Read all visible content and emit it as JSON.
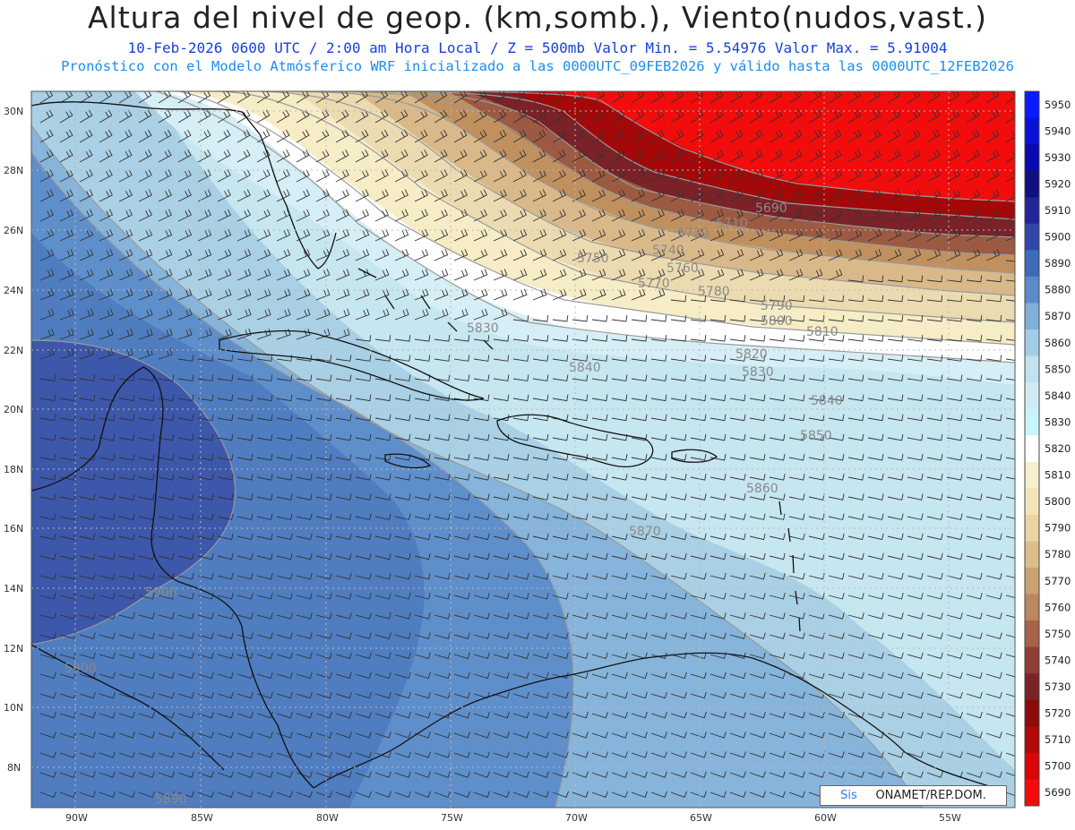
{
  "header": {
    "title": "Altura del nivel de geop. (km,somb.), Viento(nudos,vast.)",
    "line1": "10-Feb-2026  0600 UTC / 2:00 am Hora Local / Z = 500mb     Valor Min. = 5.54976  Valor Max. = 5.91004",
    "line2": "Pronóstico con el Modelo Atmósferico WRF inicializado a las 0000UTC_09FEB2026 y válido hasta las  0000UTC_12FEB2026"
  },
  "axes": {
    "lat_labels": [
      "30N",
      "28N",
      "26N",
      "24N",
      "22N",
      "20N",
      "18N",
      "16N",
      "14N",
      "12N",
      "10N",
      "8N"
    ],
    "lon_labels": [
      "90W",
      "85W",
      "80W",
      "75W",
      "70W",
      "65W",
      "60W",
      "55W"
    ]
  },
  "colorbar": {
    "levels": [
      5950,
      5940,
      5930,
      5920,
      5910,
      5900,
      5890,
      5880,
      5870,
      5860,
      5850,
      5840,
      5830,
      5820,
      5810,
      5800,
      5790,
      5780,
      5770,
      5760,
      5750,
      5740,
      5730,
      5720,
      5710,
      5700,
      5690
    ],
    "colors": [
      "#0a1cff",
      "#0a12d8",
      "#0a0ab0",
      "#101080",
      "#22249a",
      "#3046a8",
      "#3c6cb8",
      "#5a8ccc",
      "#7faed8",
      "#a3cce4",
      "#c0e2ee",
      "#d2ecf4",
      "#c8f4fa",
      "#ffffff",
      "#f8f0cc",
      "#f2e4b8",
      "#ead4a2",
      "#dcbe8a",
      "#caa272",
      "#bc8660",
      "#a6624a",
      "#8e3e36",
      "#7a2428",
      "#8c0a0a",
      "#b00808",
      "#d80606",
      "#f40a0a"
    ]
  },
  "contour_labels": [
    "5690",
    "5710",
    "5720",
    "5740",
    "5750",
    "5760",
    "5770",
    "5780",
    "5790",
    "5800",
    "5810",
    "5820",
    "5830",
    "5830",
    "5840",
    "5840",
    "5850",
    "5860",
    "5870",
    "5890",
    "5900",
    "5900"
  ],
  "credit": {
    "prefix": "Sis",
    "rest": "ONAMET/REP.DOM."
  }
}
